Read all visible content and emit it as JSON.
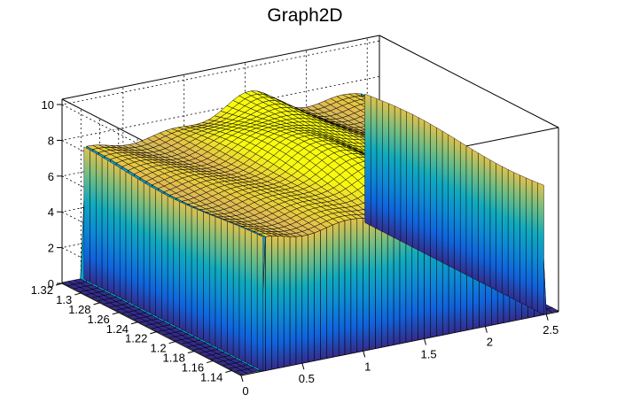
{
  "chart_data": {
    "type": "surface",
    "title": "Graph2D",
    "xlabel": "",
    "ylabel": "",
    "zlabel": "",
    "x_range": [
      0,
      2.6
    ],
    "y_range": [
      1.13,
      1.32
    ],
    "z_range": [
      0,
      10.3
    ],
    "x_ticks": [
      "0",
      "0.5",
      "1",
      "1.5",
      "2",
      "2.5"
    ],
    "x_tick_values": [
      0,
      0.5,
      1,
      1.5,
      2,
      2.5
    ],
    "y_ticks": [
      "1.14",
      "1.16",
      "1.18",
      "1.2",
      "1.22",
      "1.24",
      "1.26",
      "1.28",
      "1.3",
      "1.32"
    ],
    "y_tick_values": [
      1.14,
      1.16,
      1.18,
      1.2,
      1.22,
      1.24,
      1.26,
      1.28,
      1.3,
      1.32
    ],
    "z_ticks": [
      "0",
      "2",
      "4",
      "6",
      "8",
      "10"
    ],
    "z_tick_values": [
      0,
      2,
      4,
      6,
      8,
      10
    ],
    "grid": true,
    "colormap": "parula",
    "surface": {
      "x_step_region": [
        0.18,
        2.48
      ],
      "plateau_height_front": 7.3,
      "plateau_height_back": 7.2,
      "ridge_peak_z": 8.6,
      "base_z": 0.05
    }
  }
}
